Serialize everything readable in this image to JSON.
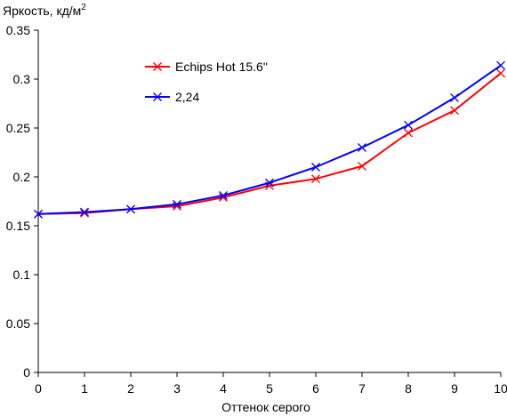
{
  "chart_data": {
    "type": "line",
    "title": "",
    "ylabel": "Яркость, кд/м",
    "ylabel_sup": "2",
    "xlabel": "Оттенок серого",
    "x": [
      0,
      1,
      2,
      3,
      4,
      5,
      6,
      7,
      8,
      9,
      10
    ],
    "xlim": [
      0,
      10
    ],
    "ylim": [
      0,
      0.35
    ],
    "x_ticks": [
      "0",
      "1",
      "2",
      "3",
      "4",
      "5",
      "6",
      "7",
      "8",
      "9",
      "10"
    ],
    "y_ticks": [
      {
        "value": 0,
        "label": "0"
      },
      {
        "value": 0.05,
        "label": "0.05"
      },
      {
        "value": 0.1,
        "label": "0.1"
      },
      {
        "value": 0.15,
        "label": "0.15"
      },
      {
        "value": 0.2,
        "label": "0.2"
      },
      {
        "value": 0.25,
        "label": "0.25"
      },
      {
        "value": 0.3,
        "label": "0.3"
      },
      {
        "value": 0.35,
        "label": "0.35"
      }
    ],
    "grid": false,
    "legend_position": "top-left",
    "series": [
      {
        "name": "Echips Hot 15.6\"",
        "color": "#ff0000",
        "marker": "x",
        "values": [
          0.162,
          0.163,
          0.167,
          0.17,
          0.179,
          0.191,
          0.198,
          0.211,
          0.245,
          0.268,
          0.306
        ]
      },
      {
        "name": "2,24",
        "color": "#0000ff",
        "marker": "x",
        "values": [
          0.162,
          0.164,
          0.167,
          0.172,
          0.181,
          0.194,
          0.21,
          0.23,
          0.253,
          0.281,
          0.314
        ]
      }
    ]
  }
}
